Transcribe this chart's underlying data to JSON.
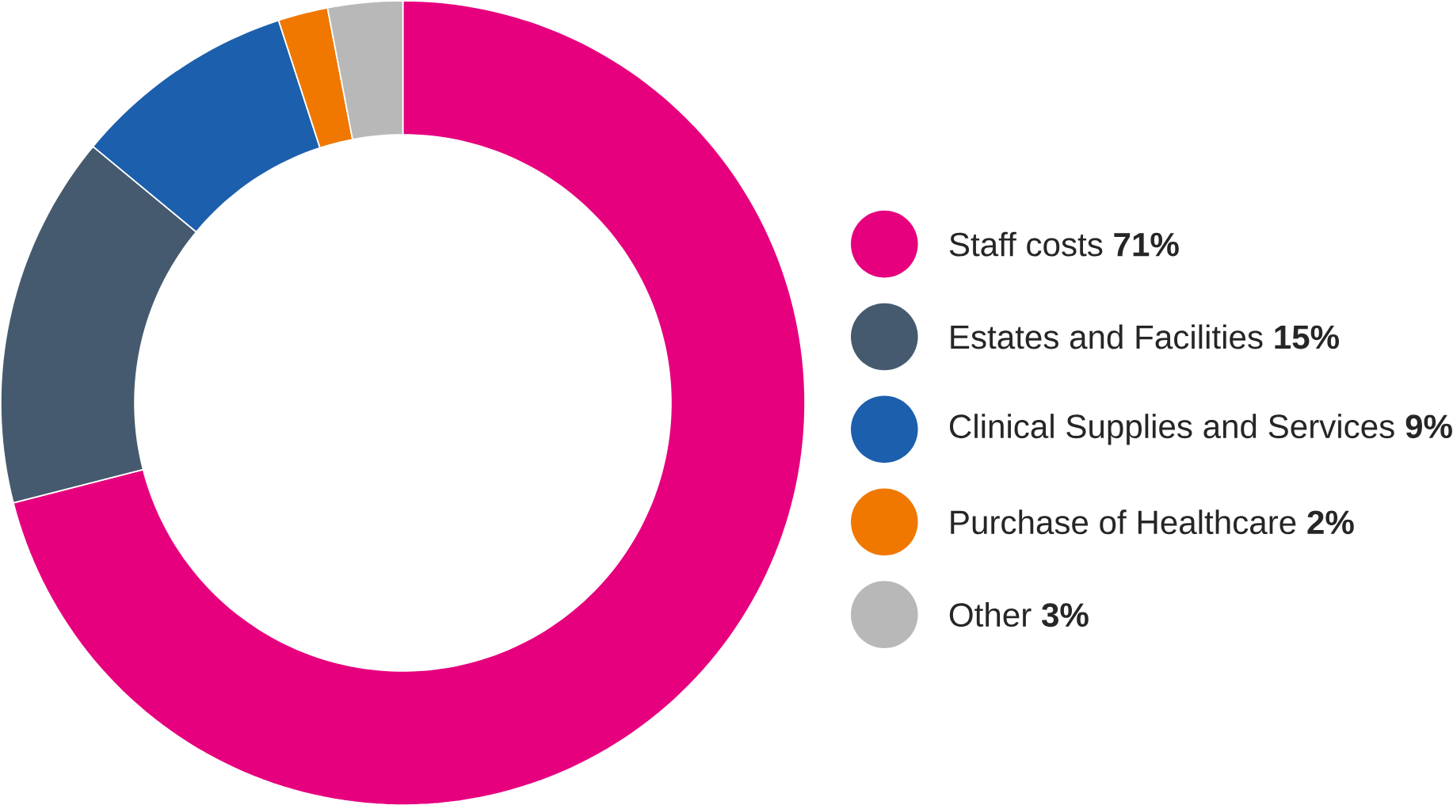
{
  "chart_data": {
    "type": "donut",
    "categories": [
      "Staff costs",
      "Estates and Facilities",
      "Clinical Supplies and Services",
      "Purchase of Healthcare",
      "Other"
    ],
    "values": [
      71,
      15,
      9,
      2,
      3
    ],
    "value_labels": [
      "71%",
      "15%",
      "9%",
      "2%",
      "3%"
    ],
    "colors": [
      "#e6007e",
      "#455a6e",
      "#1c5fac",
      "#f07800",
      "#b8b8b8"
    ],
    "legend": "right"
  }
}
